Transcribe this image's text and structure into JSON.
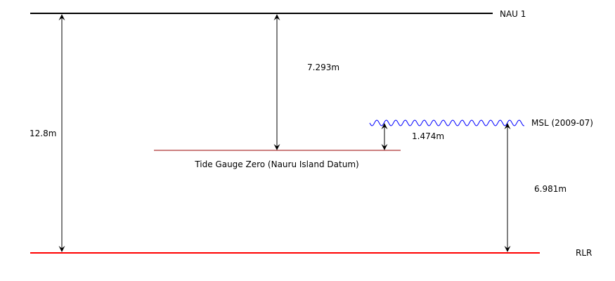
{
  "labels": {
    "nau1": "NAU 1",
    "rlr": "RLR",
    "msl": "MSL (2009-07)",
    "tide_gauge_zero": "Tide Gauge Zero (Nauru Island Datum)"
  },
  "measurements": {
    "nau1_to_rlr": "12.8m",
    "nau1_to_tgz": "7.293m",
    "tgz_to_msl": "1.474m",
    "msl_to_rlr": "6.981m"
  },
  "colors": {
    "nau1_line": "#000000",
    "rlr_line": "#ff0000",
    "tgz_line": "#990000",
    "msl_wave": "#0000ff",
    "arrows": "#000000"
  }
}
